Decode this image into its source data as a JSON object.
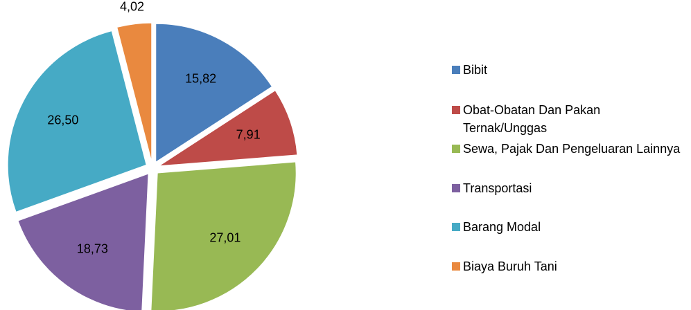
{
  "chart_data": {
    "type": "pie",
    "categories": [
      "Bibit",
      "Obat-Obatan Dan Pakan Ternak/Unggas",
      "Sewa, Pajak Dan Pengeluaran Lainnya",
      "Transportasi",
      "Barang Modal",
      "Biaya Buruh Tani"
    ],
    "values": [
      15.82,
      7.91,
      27.01,
      18.73,
      26.5,
      4.02
    ],
    "value_labels": [
      "15,82",
      "7,91",
      "27,01",
      "18,73",
      "26,50",
      "4,02"
    ],
    "colors": [
      "#4a7ebb",
      "#be4b48",
      "#98b954",
      "#7d60a0",
      "#46aac5",
      "#e9893f"
    ],
    "legend": "right"
  }
}
